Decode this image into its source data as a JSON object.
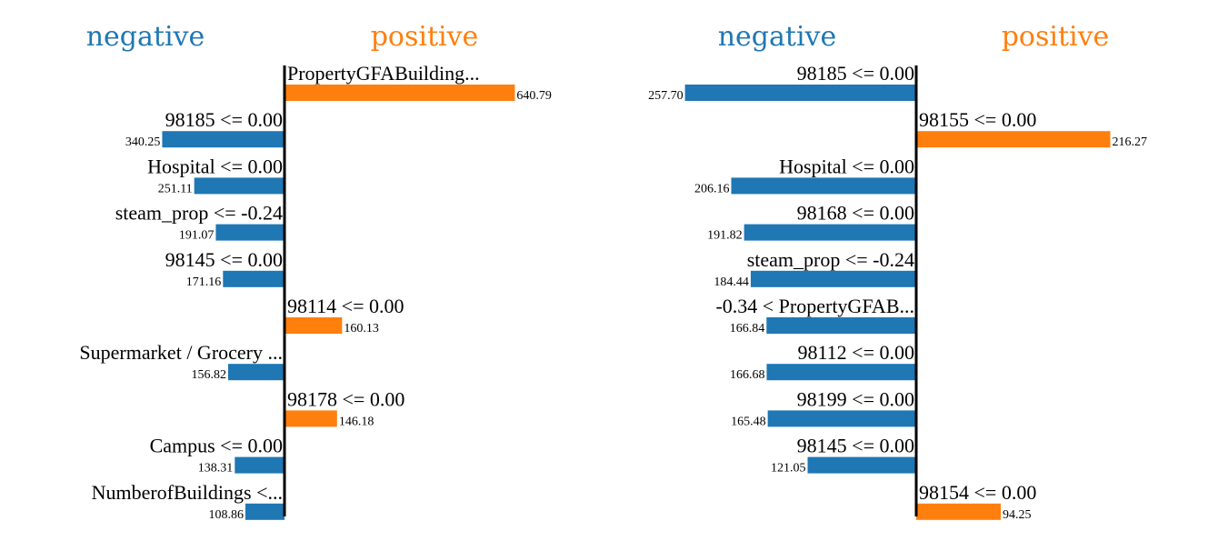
{
  "chart_data": [
    {
      "type": "bar",
      "orientation": "horizontal-diverging",
      "headers": {
        "negative": "negative",
        "positive": "positive"
      },
      "colors": {
        "negative": "#1f77b4",
        "positive": "#ff7f0e"
      },
      "xlim": [
        -346,
        650
      ],
      "items": [
        {
          "label": "PropertyGFABuilding...",
          "value": 640.79,
          "display": "640.79"
        },
        {
          "label": "98185 <= 0.00",
          "value": -340.25,
          "display": "340.25"
        },
        {
          "label": "Hospital <= 0.00",
          "value": -251.11,
          "display": "251.11"
        },
        {
          "label": "steam_prop <= -0.24",
          "value": -191.07,
          "display": "191.07"
        },
        {
          "label": "98145 <= 0.00",
          "value": -171.16,
          "display": "171.16"
        },
        {
          "label": "98114 <= 0.00",
          "value": 160.13,
          "display": "160.13"
        },
        {
          "label": "Supermarket / Grocery ...",
          "value": -156.82,
          "display": "156.82"
        },
        {
          "label": "98178 <= 0.00",
          "value": 146.18,
          "display": "146.18"
        },
        {
          "label": "Campus <= 0.00",
          "value": -138.31,
          "display": "138.31"
        },
        {
          "label": "NumberofBuildings <...",
          "value": -108.86,
          "display": "108.86"
        }
      ]
    },
    {
      "type": "bar",
      "orientation": "horizontal-diverging",
      "headers": {
        "negative": "negative",
        "positive": "positive"
      },
      "colors": {
        "negative": "#1f77b4",
        "positive": "#ff7f0e"
      },
      "xlim": [
        -260,
        260
      ],
      "items": [
        {
          "label": "98185 <= 0.00",
          "value": -257.7,
          "display": "257.70"
        },
        {
          "label": "98155 <= 0.00",
          "value": 216.27,
          "display": "216.27"
        },
        {
          "label": "Hospital <= 0.00",
          "value": -206.16,
          "display": "206.16"
        },
        {
          "label": "98168 <= 0.00",
          "value": -191.82,
          "display": "191.82"
        },
        {
          "label": "steam_prop <= -0.24",
          "value": -184.44,
          "display": "184.44"
        },
        {
          "label": "-0.34 < PropertyGFAB...",
          "value": -166.84,
          "display": "166.84"
        },
        {
          "label": "98112 <= 0.00",
          "value": -166.68,
          "display": "166.68"
        },
        {
          "label": "98199 <= 0.00",
          "value": -165.48,
          "display": "165.48"
        },
        {
          "label": "98145 <= 0.00",
          "value": -121.05,
          "display": "121.05"
        },
        {
          "label": "98154 <= 0.00",
          "value": 94.25,
          "display": "94.25"
        }
      ]
    }
  ]
}
